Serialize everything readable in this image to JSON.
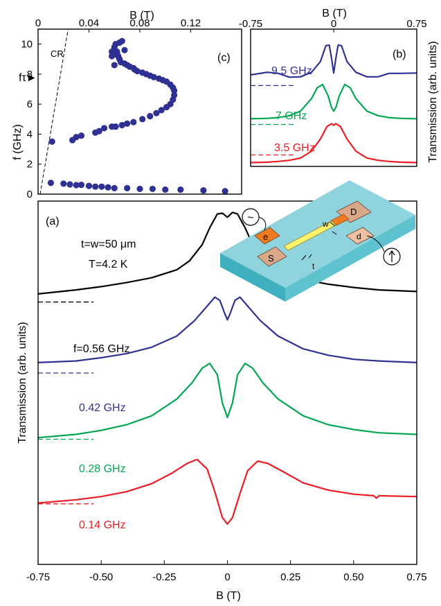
{
  "colors": {
    "black": "#000000",
    "blue": "#2e3192",
    "green": "#00a651",
    "red": "#ed1c24",
    "dots": "#2e3192",
    "substrate_top": "#8fd3dc",
    "substrate_side": "#3fb0c0",
    "contact": "#d9a889",
    "contact_dark": "#f07b21",
    "strip": "#fff36a"
  },
  "chart_data": [
    {
      "id": "a",
      "type": "line",
      "panel_label": "(a)",
      "annotations": [
        "t=w=50 μm",
        "T=4.2 K"
      ],
      "xlabel": "B (T)",
      "ylabel": "Transmission (arb. units)",
      "xlim": [
        -0.75,
        0.75
      ],
      "xticks": [
        "-0.75",
        "-0.50",
        "-0.25",
        "0",
        "0.25",
        "0.50",
        "0.75"
      ],
      "xtick_values": [
        -0.75,
        -0.5,
        -0.25,
        0,
        0.25,
        0.5,
        0.75
      ],
      "ylim": [
        0,
        4.5
      ],
      "series": [
        {
          "name": "f=0.56 GHz",
          "color": "#000000",
          "baseline": 3.25,
          "x": [
            -0.75,
            -0.6,
            -0.5,
            -0.4,
            -0.3,
            -0.2,
            -0.15,
            -0.1,
            -0.07,
            -0.04,
            -0.02,
            0,
            0.02,
            0.04,
            0.07,
            0.1,
            0.15,
            0.2,
            0.3,
            0.4,
            0.5,
            0.6,
            0.75
          ],
          "y": [
            3.35,
            3.4,
            3.44,
            3.49,
            3.55,
            3.65,
            3.76,
            3.96,
            4.17,
            4.34,
            4.35,
            4.3,
            4.36,
            4.34,
            4.17,
            3.96,
            3.76,
            3.64,
            3.53,
            3.47,
            3.43,
            3.4,
            3.38
          ]
        },
        {
          "name": "0.42 GHz",
          "color": "#2e3192",
          "baseline": 2.37,
          "x": [
            -0.75,
            -0.6,
            -0.5,
            -0.4,
            -0.3,
            -0.2,
            -0.13,
            -0.08,
            -0.05,
            -0.03,
            -0.01,
            0,
            0.01,
            0.03,
            0.05,
            0.08,
            0.13,
            0.2,
            0.3,
            0.4,
            0.5,
            0.6,
            0.75
          ],
          "y": [
            2.5,
            2.52,
            2.56,
            2.61,
            2.69,
            2.83,
            3.02,
            3.2,
            3.31,
            3.27,
            3.1,
            3.03,
            3.1,
            3.27,
            3.31,
            3.2,
            3.02,
            2.83,
            2.67,
            2.59,
            2.54,
            2.52,
            2.5
          ]
        },
        {
          "name": "0.28 GHz",
          "color": "#00a651",
          "baseline": 1.55,
          "x": [
            -0.75,
            -0.6,
            -0.5,
            -0.4,
            -0.3,
            -0.2,
            -0.14,
            -0.1,
            -0.07,
            -0.04,
            -0.02,
            0,
            0.02,
            0.04,
            0.07,
            0.1,
            0.14,
            0.2,
            0.3,
            0.4,
            0.5,
            0.6,
            0.75
          ],
          "y": [
            1.57,
            1.61,
            1.66,
            1.73,
            1.84,
            2.05,
            2.25,
            2.43,
            2.49,
            2.35,
            2.0,
            1.82,
            2.0,
            2.35,
            2.49,
            2.43,
            2.25,
            2.05,
            1.84,
            1.73,
            1.67,
            1.63,
            1.61
          ]
        },
        {
          "name": "0.14 GHz",
          "color": "#ed1c24",
          "baseline": 0.75,
          "x": [
            -0.75,
            -0.6,
            -0.5,
            -0.4,
            -0.3,
            -0.22,
            -0.16,
            -0.12,
            -0.08,
            -0.05,
            -0.02,
            0,
            0.02,
            0.05,
            0.08,
            0.12,
            0.16,
            0.22,
            0.3,
            0.4,
            0.5,
            0.58,
            0.59,
            0.6,
            0.75
          ],
          "y": [
            0.76,
            0.8,
            0.84,
            0.9,
            1.0,
            1.13,
            1.25,
            1.3,
            1.18,
            0.9,
            0.58,
            0.5,
            0.58,
            0.88,
            1.16,
            1.28,
            1.25,
            1.15,
            1.01,
            0.92,
            0.87,
            0.85,
            0.82,
            0.85,
            0.84
          ]
        }
      ]
    },
    {
      "id": "b",
      "type": "line",
      "panel_label": "(b)",
      "xlabel": "B (T)",
      "ylabel": "Transmission (arb. units)",
      "xlim": [
        -0.75,
        0.75
      ],
      "xticks": [
        "-0.75",
        "0",
        "0.75"
      ],
      "xtick_values": [
        -0.75,
        0,
        0.75
      ],
      "ylim": [
        0,
        3.6
      ],
      "series": [
        {
          "name": "9.5 GHz",
          "color": "#2e3192",
          "baseline": 2.12,
          "x": [
            -0.75,
            -0.6,
            -0.5,
            -0.4,
            -0.3,
            -0.2,
            -0.12,
            -0.07,
            -0.04,
            -0.02,
            0,
            0.02,
            0.04,
            0.07,
            0.12,
            0.2,
            0.3,
            0.4,
            0.5,
            0.6,
            0.75
          ],
          "y": [
            2.4,
            2.47,
            2.44,
            2.34,
            2.35,
            2.47,
            2.75,
            3.17,
            3.18,
            2.85,
            2.45,
            2.85,
            3.18,
            3.17,
            2.75,
            2.47,
            2.35,
            2.35,
            2.44,
            2.44,
            2.45
          ]
        },
        {
          "name": "7 GHz",
          "color": "#00a651",
          "baseline": 1.1,
          "x": [
            -0.75,
            -0.6,
            -0.5,
            -0.4,
            -0.3,
            -0.2,
            -0.15,
            -0.1,
            -0.05,
            -0.02,
            0,
            0.02,
            0.05,
            0.1,
            0.15,
            0.2,
            0.3,
            0.4,
            0.5,
            0.6,
            0.75
          ],
          "y": [
            1.25,
            1.26,
            1.28,
            1.33,
            1.45,
            1.78,
            2.06,
            2.15,
            1.85,
            1.55,
            1.45,
            1.55,
            1.85,
            2.15,
            2.06,
            1.78,
            1.45,
            1.33,
            1.28,
            1.26,
            1.25
          ]
        },
        {
          "name": "3.5 GHz",
          "color": "#ed1c24",
          "baseline": 0.3,
          "x": [
            -0.75,
            -0.6,
            -0.5,
            -0.4,
            -0.3,
            -0.2,
            -0.12,
            -0.06,
            -0.02,
            0,
            0.02,
            0.06,
            0.12,
            0.2,
            0.3,
            0.4,
            0.5,
            0.6,
            0.75
          ],
          "y": [
            0.1,
            0.11,
            0.13,
            0.16,
            0.22,
            0.4,
            0.72,
            1.05,
            1.12,
            1.08,
            1.12,
            1.05,
            0.72,
            0.4,
            0.22,
            0.16,
            0.13,
            0.11,
            0.1
          ]
        }
      ]
    },
    {
      "id": "c",
      "type": "scatter",
      "panel_label": "(c)",
      "xlabel": "B (T)",
      "ylabel": "f (GHz)",
      "marker_label": "fτ►",
      "marker_y": 7.8,
      "xlim": [
        0,
        0.16
      ],
      "ylim": [
        0,
        11
      ],
      "xticks": [
        "0",
        "0.04",
        "0.08",
        "0.12"
      ],
      "xtick_values": [
        0,
        0.04,
        0.08,
        0.12
      ],
      "yticks": [
        "0",
        "2",
        "4",
        "6",
        "8",
        "10"
      ],
      "ytick_values": [
        0,
        2,
        4,
        6,
        8,
        10
      ],
      "reference_line": {
        "label": "CR",
        "x": [
          0,
          0.022
        ],
        "y": [
          0,
          11
        ]
      },
      "series": [
        {
          "name": "",
          "color": "#2e3192",
          "x": [
            0.01,
            0.02,
            0.025,
            0.03,
            0.034,
            0.04,
            0.045,
            0.05,
            0.055,
            0.06,
            0.07,
            0.08,
            0.09,
            0.1,
            0.112,
            0.13,
            0.147,
            0.011,
            0.027,
            0.03,
            0.034,
            0.045,
            0.048,
            0.052,
            0.058,
            0.061,
            0.066,
            0.07,
            0.075,
            0.082,
            0.088,
            0.093,
            0.097,
            0.101,
            0.104,
            0.106,
            0.107,
            0.107,
            0.106,
            0.104,
            0.101,
            0.098,
            0.095,
            0.091,
            0.088,
            0.085,
            0.082,
            0.078,
            0.076,
            0.075,
            0.072,
            0.07,
            0.068,
            0.065,
            0.064,
            0.063,
            0.062,
            0.06,
            0.061,
            0.064,
            0.066,
            0.068,
            0.062,
            0.059,
            0.058,
            0.058,
            0.06
          ],
          "y": [
            0.75,
            0.7,
            0.65,
            0.6,
            0.62,
            0.55,
            0.5,
            0.5,
            0.45,
            0.4,
            0.4,
            0.35,
            0.35,
            0.3,
            0.3,
            0.25,
            0.2,
            3.5,
            3.6,
            3.8,
            3.9,
            4.1,
            4.2,
            4.4,
            4.5,
            4.5,
            4.6,
            4.7,
            4.8,
            5.0,
            5.2,
            5.4,
            5.6,
            5.8,
            6.0,
            6.3,
            6.6,
            6.9,
            7.1,
            7.3,
            7.5,
            7.6,
            7.7,
            7.8,
            7.9,
            8.0,
            8.1,
            8.2,
            8.3,
            8.4,
            8.5,
            8.6,
            8.7,
            8.8,
            9.0,
            9.2,
            9.5,
            9.8,
            10.0,
            10.1,
            10.2,
            9.6,
            9.4,
            9.3,
            9.2,
            9.5,
            8.6
          ]
        }
      ]
    }
  ],
  "inset": {
    "source_symbol": "~",
    "contacts": [
      "e",
      "S",
      "D",
      "d"
    ],
    "dims": [
      "w",
      "t"
    ]
  }
}
